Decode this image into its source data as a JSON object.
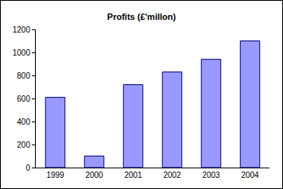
{
  "chart_data": {
    "type": "bar",
    "title": "Profits (£'millon)",
    "categories": [
      "1999",
      "2000",
      "2001",
      "2002",
      "2003",
      "2004"
    ],
    "values": [
      610,
      100,
      720,
      830,
      940,
      1100
    ],
    "color": "#9999ff",
    "ylim": [
      0,
      1200
    ],
    "yticks": [
      0,
      200,
      400,
      600,
      800,
      1000,
      1200
    ],
    "grid": false
  }
}
